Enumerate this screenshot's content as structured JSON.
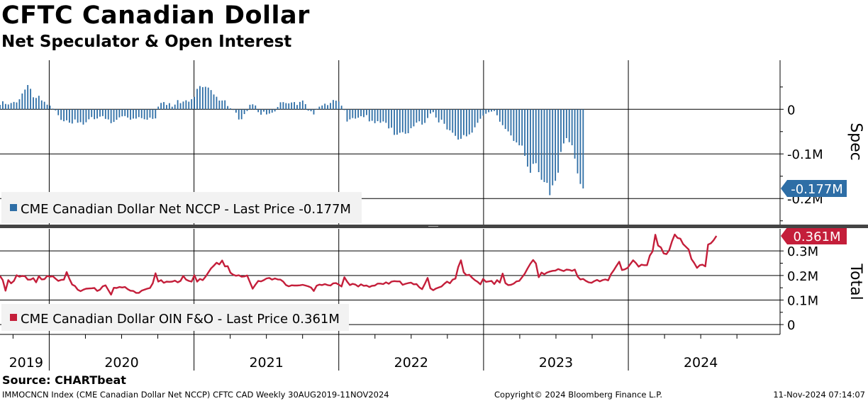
{
  "title": "CFTC Canadian Dollar",
  "subtitle": "Net Speculator & Open Interest",
  "source": "Source: CHARTbeat",
  "footer": {
    "left": "IMMOCNCN Index (CME Canadian Dollar Net NCCP) CFTC CAD  Weekly 30AUG2019-11NOV2024",
    "middle": "Copyright© 2024 Bloomberg Finance L.P.",
    "right": "11-Nov-2024 07:14:07"
  },
  "colors": {
    "spec": "#2e6ea6",
    "total": "#c41e3a",
    "grid": "#000000",
    "legend_bg": "#f2f2f2"
  },
  "chart_data": [
    {
      "type": "bar",
      "panel": "top",
      "ylabel": "Spec",
      "ylim": [
        -0.26,
        0.11
      ],
      "unit": "M",
      "yticks": [
        {
          "v": 0,
          "label": "0"
        },
        {
          "v": -0.1,
          "label": "-0.1M"
        },
        {
          "v": -0.2,
          "label": "-0.2M"
        }
      ],
      "last_label": "-0.177M",
      "legend": "CME Canadian Dollar Net NCCP - Last Price -0.177M",
      "series": [
        {
          "name": "CME Canadian Dollar Net NCCP",
          "x_start": 2019.66,
          "x_step": 0.01918,
          "values": [
            0.0099,
            0.018,
            0.012,
            0.0108,
            0.0141,
            0.0165,
            0.0154,
            0.0225,
            0.0354,
            0.0442,
            0.0544,
            0.0459,
            0.0269,
            0.0254,
            0.0303,
            0.0199,
            0.0169,
            0.0103,
            0.0083,
            0.0015,
            -0.0024,
            -0.0132,
            -0.0238,
            -0.0268,
            -0.0247,
            -0.03,
            -0.0319,
            -0.0228,
            -0.0301,
            -0.0289,
            -0.0343,
            -0.0291,
            -0.0224,
            -0.0174,
            -0.0222,
            -0.0206,
            -0.0165,
            -0.0152,
            -0.0215,
            -0.0227,
            -0.0311,
            -0.0283,
            -0.0235,
            -0.0181,
            -0.0158,
            -0.0152,
            -0.0185,
            -0.0232,
            -0.0208,
            -0.0209,
            -0.0175,
            -0.0198,
            -0.0223,
            -0.0233,
            -0.0186,
            -0.0215,
            -0.0204,
            0.006,
            0.0143,
            0.0162,
            0.0097,
            0.0138,
            0.0058,
            0.0105,
            0.0206,
            0.0138,
            0.0174,
            0.0202,
            0.0171,
            0.0227,
            0.0278,
            0.0458,
            0.0521,
            0.0496,
            0.0505,
            0.0487,
            0.0431,
            0.0332,
            0.0281,
            0.0196,
            0.0197,
            0.0201,
            0.0073,
            0.0022,
            -0.0015,
            -0.0075,
            -0.0229,
            -0.0223,
            -0.0107,
            -0.0038,
            0.0102,
            0.0112,
            0.0086,
            -0.0064,
            -0.0121,
            -0.0053,
            -0.0115,
            -0.0097,
            -0.0075,
            -0.0048,
            0.0052,
            0.0157,
            0.0161,
            0.0139,
            0.0133,
            0.0153,
            0.0162,
            0.0097,
            0.0165,
            0.0197,
            0.0116,
            -0.003,
            -0.0044,
            -0.0116,
            0.0011,
            0.0059,
            0.0086,
            0.0126,
            0.0094,
            0.0142,
            0.0208,
            0.0193,
            0.0176,
            0.0081,
            -0.0017,
            -0.0275,
            -0.0226,
            -0.0196,
            -0.0209,
            -0.0188,
            -0.0155,
            -0.0176,
            -0.013,
            -0.0271,
            -0.0258,
            -0.0311,
            -0.0266,
            -0.0302,
            -0.0272,
            -0.0303,
            -0.0428,
            -0.0413,
            -0.0574,
            -0.0569,
            -0.0527,
            -0.0514,
            -0.0548,
            -0.0536,
            -0.0424,
            -0.0383,
            -0.0299,
            -0.0269,
            -0.0343,
            -0.0305,
            -0.0195,
            -0.0096,
            -0.0064,
            -0.0184,
            -0.0294,
            -0.0233,
            -0.0325,
            -0.0452,
            -0.0472,
            -0.0525,
            -0.0595,
            -0.0679,
            -0.0661,
            -0.0578,
            -0.0606,
            -0.0563,
            -0.0523,
            -0.0404,
            -0.0302,
            -0.0212,
            -0.0142,
            -0.01,
            -0.0066,
            -0.0051,
            -0.0037,
            -0.0134,
            -0.0278,
            -0.0356,
            -0.0441,
            -0.0496,
            -0.0586,
            -0.0709,
            -0.0743,
            -0.0807,
            -0.0813,
            -0.1044,
            -0.1285,
            -0.1423,
            -0.1223,
            -0.1208,
            -0.1409,
            -0.158,
            -0.1631,
            -0.1649,
            -0.1925,
            -0.1704,
            -0.1603,
            -0.1421,
            -0.0956,
            -0.0765,
            -0.0646,
            -0.0737,
            -0.0806,
            -0.1105,
            -0.1437,
            -0.1673,
            -0.1774
          ]
        }
      ]
    },
    {
      "type": "line",
      "panel": "bottom",
      "ylabel": "Total",
      "ylim": [
        -0.04,
        0.39
      ],
      "unit": "M",
      "yticks": [
        {
          "v": 0,
          "label": "0"
        },
        {
          "v": 0.1,
          "label": "0.1M"
        },
        {
          "v": 0.2,
          "label": "0.2M"
        },
        {
          "v": 0.3,
          "label": "0.3M"
        }
      ],
      "last_label": "0.361M",
      "legend": "CME Canadian Dollar OIN F&O - Last Price 0.361M",
      "series": [
        {
          "name": "CME Canadian Dollar OIN F&O",
          "x_start": 2019.66,
          "x_step": 0.01918,
          "values": [
            0.198,
            0.181,
            0.138,
            0.181,
            0.168,
            0.178,
            0.201,
            0.195,
            0.198,
            0.197,
            0.183,
            0.183,
            0.189,
            0.172,
            0.197,
            0.184,
            0.185,
            0.198,
            0.195,
            0.197,
            0.187,
            0.178,
            0.182,
            0.183,
            0.214,
            0.186,
            0.163,
            0.157,
            0.142,
            0.136,
            0.142,
            0.146,
            0.147,
            0.148,
            0.149,
            0.137,
            0.142,
            0.156,
            0.16,
            0.141,
            0.122,
            0.15,
            0.149,
            0.153,
            0.151,
            0.153,
            0.144,
            0.138,
            0.137,
            0.129,
            0.129,
            0.138,
            0.142,
            0.146,
            0.149,
            0.168,
            0.209,
            0.175,
            0.181,
            0.17,
            0.175,
            0.174,
            0.175,
            0.179,
            0.172,
            0.178,
            0.198,
            0.183,
            0.178,
            0.175,
            0.201,
            0.175,
            0.186,
            0.181,
            0.195,
            0.212,
            0.229,
            0.24,
            0.252,
            0.245,
            0.261,
            0.237,
            0.238,
            0.211,
            0.203,
            0.199,
            0.201,
            0.195,
            0.196,
            0.2,
            0.173,
            0.146,
            0.163,
            0.178,
            0.176,
            0.181,
            0.188,
            0.19,
            0.183,
            0.188,
            0.184,
            0.183,
            0.175,
            0.161,
            0.156,
            0.16,
            0.159,
            0.159,
            0.16,
            0.162,
            0.159,
            0.156,
            0.151,
            0.137,
            0.158,
            0.163,
            0.161,
            0.165,
            0.161,
            0.159,
            0.168,
            0.169,
            0.163,
            0.155,
            0.193,
            0.175,
            0.161,
            0.166,
            0.163,
            0.155,
            0.164,
            0.158,
            0.159,
            0.153,
            0.158,
            0.159,
            0.167,
            0.167,
            0.165,
            0.172,
            0.166,
            0.175,
            0.177,
            0.176,
            0.176,
            0.162,
            0.166,
            0.169,
            0.171,
            0.164,
            0.165,
            0.152,
            0.144,
            0.166,
            0.19,
            0.148,
            0.14,
            0.147,
            0.151,
            0.155,
            0.166,
            0.175,
            0.168,
            0.183,
            0.187,
            0.234,
            0.262,
            0.213,
            0.201,
            0.203,
            0.191,
            0.181,
            0.174,
            0.164,
            0.186,
            0.174,
            0.176,
            0.178,
            0.165,
            0.181,
            0.171,
            0.208,
            0.169,
            0.161,
            0.162,
            0.167,
            0.176,
            0.178,
            0.193,
            0.208,
            0.229,
            0.248,
            0.263,
            0.249,
            0.193,
            0.212,
            0.205,
            0.212,
            0.216,
            0.219,
            0.22,
            0.226,
            0.222,
            0.218,
            0.224,
            0.223,
            0.219,
            0.224,
            0.196,
            0.184,
            0.186,
            0.178,
            0.172,
            0.17,
            0.177,
            0.182,
            0.176,
            0.181,
            0.184,
            0.18,
            0.205,
            0.221,
            0.239,
            0.256,
            0.222,
            0.225,
            0.231,
            0.247,
            0.262,
            0.251,
            0.236,
            0.244,
            0.242,
            0.242,
            0.281,
            0.298,
            0.366,
            0.322,
            0.314,
            0.29,
            0.287,
            0.303,
            0.339,
            0.367,
            0.353,
            0.35,
            0.328,
            0.317,
            0.306,
            0.267,
            0.251,
            0.231,
            0.242,
            0.244,
            0.237,
            0.326,
            0.331,
            0.344,
            0.361
          ]
        }
      ]
    }
  ],
  "x_axis": {
    "years": [
      {
        "label": "2019",
        "v": 2019.84
      },
      {
        "label": "2020",
        "v": 2020.5
      },
      {
        "label": "2021",
        "v": 2021.5
      },
      {
        "label": "2022",
        "v": 2022.5
      },
      {
        "label": "2023",
        "v": 2023.5
      },
      {
        "label": "2024",
        "v": 2024.5
      }
    ],
    "year_boundaries": [
      2020,
      2021,
      2022,
      2023,
      2024
    ],
    "minor_ticks": [
      2019.75,
      2020.25,
      2020.5,
      2020.75,
      2021.25,
      2021.5,
      2021.75,
      2022.25,
      2022.5,
      2022.75,
      2023.25,
      2023.5,
      2023.75,
      2024.25,
      2024.5,
      2024.75
    ]
  }
}
